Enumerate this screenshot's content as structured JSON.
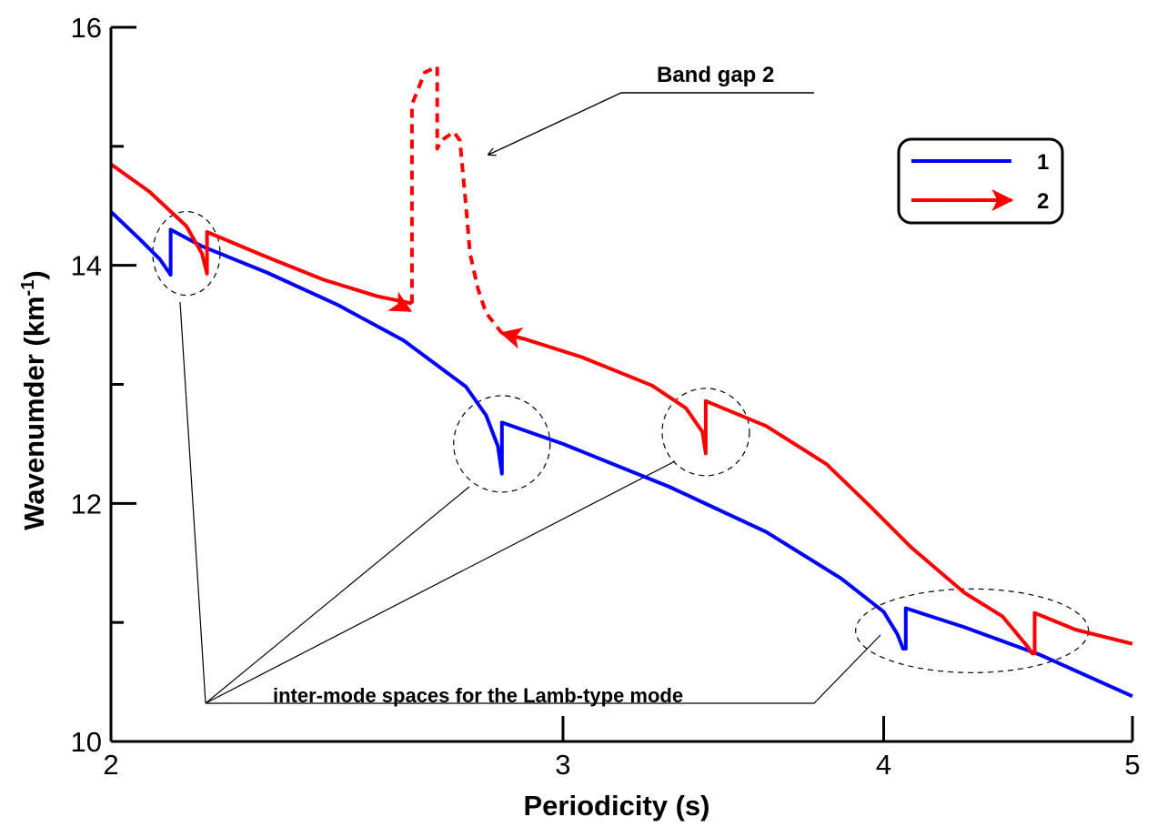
{
  "chart_data": {
    "type": "line",
    "xlabel": "Periodicity (s)",
    "ylabel_main": "Wavenumder (km",
    "ylabel_sup": "-1",
    "ylabel_end": ")",
    "x_scale": "log",
    "xlim": [
      2,
      5
    ],
    "ylim": [
      10,
      16
    ],
    "x_ticks": [
      "2",
      "3",
      "4",
      "5"
    ],
    "y_ticks": [
      "10",
      "12",
      "14",
      "16"
    ],
    "grid": false,
    "legend_position": "top-right",
    "colors": {
      "series1": "#0000ff",
      "series2": "#ff0000",
      "annotation": "#000000"
    },
    "series": [
      {
        "name": "1",
        "style": "solid",
        "points": [
          [
            2.0,
            14.45
          ],
          [
            2.05,
            14.23
          ],
          [
            2.09,
            14.05
          ],
          [
            2.11,
            13.92
          ],
          [
            2.11,
            14.3
          ],
          [
            2.17,
            14.16
          ],
          [
            2.3,
            13.94
          ],
          [
            2.45,
            13.67
          ],
          [
            2.6,
            13.37
          ],
          [
            2.75,
            12.98
          ],
          [
            2.8,
            12.74
          ],
          [
            2.83,
            12.48
          ],
          [
            2.84,
            12.25
          ],
          [
            2.84,
            12.68
          ],
          [
            3.0,
            12.5
          ],
          [
            3.3,
            12.14
          ],
          [
            3.6,
            11.76
          ],
          [
            3.85,
            11.37
          ],
          [
            4.0,
            11.09
          ],
          [
            4.05,
            10.9
          ],
          [
            4.07,
            10.78
          ],
          [
            4.08,
            10.78
          ],
          [
            4.08,
            11.12
          ],
          [
            4.3,
            10.96
          ],
          [
            4.6,
            10.73
          ],
          [
            5.0,
            10.38
          ]
        ]
      },
      {
        "name": "2",
        "style": "solid",
        "points": [
          [
            2.0,
            14.85
          ],
          [
            2.07,
            14.62
          ],
          [
            2.14,
            14.33
          ],
          [
            2.17,
            14.1
          ],
          [
            2.18,
            13.93
          ],
          [
            2.18,
            14.28
          ],
          [
            2.3,
            14.07
          ],
          [
            2.42,
            13.88
          ],
          [
            2.54,
            13.74
          ],
          [
            2.62,
            13.68
          ]
        ]
      },
      {
        "name": "2",
        "style": "dashed",
        "points": [
          [
            2.62,
            13.68
          ],
          [
            2.62,
            15.35
          ],
          [
            2.65,
            15.62
          ],
          [
            2.68,
            15.67
          ],
          [
            2.68,
            14.98
          ],
          [
            2.69,
            15.05
          ],
          [
            2.72,
            15.12
          ],
          [
            2.735,
            15.05
          ],
          [
            2.75,
            14.5
          ],
          [
            2.76,
            14.1
          ],
          [
            2.78,
            13.8
          ],
          [
            2.8,
            13.6
          ],
          [
            2.84,
            13.43
          ]
        ]
      },
      {
        "name": "2",
        "style": "solid",
        "points": [
          [
            2.84,
            13.43
          ],
          [
            2.9,
            13.38
          ],
          [
            3.05,
            13.23
          ],
          [
            3.25,
            12.99
          ],
          [
            3.35,
            12.8
          ],
          [
            3.4,
            12.6
          ],
          [
            3.41,
            12.42
          ],
          [
            3.41,
            12.86
          ],
          [
            3.6,
            12.65
          ],
          [
            3.8,
            12.33
          ],
          [
            3.95,
            11.98
          ],
          [
            4.1,
            11.63
          ],
          [
            4.3,
            11.25
          ],
          [
            4.45,
            11.05
          ],
          [
            4.55,
            10.8
          ],
          [
            4.57,
            10.74
          ],
          [
            4.58,
            10.74
          ],
          [
            4.58,
            11.08
          ],
          [
            4.75,
            10.94
          ],
          [
            5.0,
            10.82
          ]
        ]
      }
    ],
    "legend": [
      {
        "label": "1",
        "color": "#0000ff"
      },
      {
        "label": "2",
        "color": "#ff0000"
      }
    ],
    "annotations": {
      "band_gap_label": "Band gap 2",
      "intermode_label": "inter-mode spaces for the Lamb-type mode"
    }
  }
}
